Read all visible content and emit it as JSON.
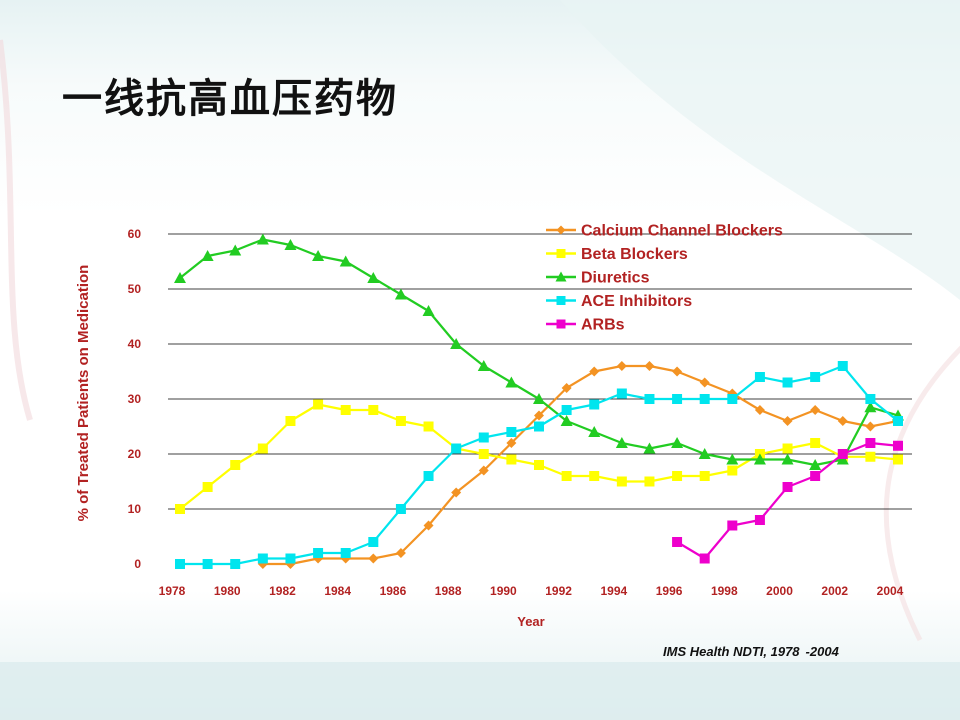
{
  "slide": {
    "title": "一线抗高血压药物",
    "source_text": "IMS Health NDTI, 1978",
    "source_range_end": "-2004"
  },
  "colors": {
    "axis_text": "#b22222",
    "gridline": "#000000"
  },
  "chart_data": {
    "type": "line",
    "title": "",
    "xlabel": "Year",
    "ylabel": "% of Treated Patients on Medication",
    "x": [
      1978,
      1979,
      1980,
      1981,
      1982,
      1983,
      1984,
      1985,
      1986,
      1987,
      1988,
      1989,
      1990,
      1991,
      1992,
      1993,
      1994,
      1995,
      1996,
      1997,
      1998,
      1999,
      2000,
      2001,
      2002,
      2003,
      2004
    ],
    "xticks": [
      "1978",
      "1980",
      "1982",
      "1984",
      "1986",
      "1988",
      "1990",
      "1992",
      "1994",
      "1996",
      "1998",
      "2000",
      "2002",
      "2004"
    ],
    "yticks": [
      "0",
      "10",
      "20",
      "30",
      "40",
      "50",
      "60"
    ],
    "ylim": [
      0,
      60
    ],
    "grid": "horizontal",
    "legend_position": "top-right",
    "series": [
      {
        "name": "Calcium Channel Blockers",
        "color": "#f39323",
        "marker": "diamond",
        "values": [
          null,
          null,
          null,
          0,
          0,
          1,
          1,
          1,
          2,
          7,
          13,
          17,
          22,
          27,
          32,
          35,
          36,
          36,
          35,
          33,
          31,
          28,
          26,
          28,
          26,
          25,
          26
        ]
      },
      {
        "name": "Beta Blockers",
        "color": "#ffff00",
        "marker": "square",
        "values": [
          10,
          14,
          18,
          21,
          26,
          29,
          28,
          28,
          26,
          25,
          21,
          20,
          19,
          18,
          16,
          16,
          15,
          15,
          16,
          16,
          17,
          20,
          21,
          22,
          19.5,
          19.5,
          19
        ]
      },
      {
        "name": "Diuretics",
        "color": "#22cc22",
        "marker": "triangle",
        "values": [
          52,
          56,
          57,
          59,
          58,
          56,
          55,
          52,
          49,
          46,
          40,
          36,
          33,
          30,
          26,
          24,
          22,
          21,
          22,
          20,
          19,
          19,
          19,
          18,
          19,
          28.5,
          27
        ]
      },
      {
        "name": "ACE Inhibitors",
        "color": "#00e5ee",
        "marker": "square",
        "values": [
          0,
          0,
          0,
          1,
          1,
          2,
          2,
          4,
          10,
          16,
          21,
          23,
          24,
          25,
          28,
          29,
          31,
          30,
          30,
          30,
          30,
          34,
          33,
          34,
          36,
          30,
          26
        ]
      },
      {
        "name": "ARBs",
        "color": "#ee00cc",
        "marker": "square",
        "values": [
          null,
          null,
          null,
          null,
          null,
          null,
          null,
          null,
          null,
          null,
          null,
          null,
          null,
          null,
          null,
          null,
          null,
          null,
          4,
          1,
          7,
          8,
          14,
          16,
          20,
          22,
          21.5
        ]
      }
    ]
  }
}
